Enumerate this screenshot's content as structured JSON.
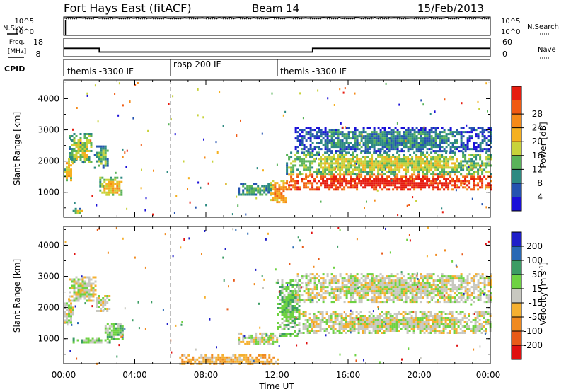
{
  "header": {
    "station": "Fort Hays East (fitACF)",
    "beam": "Beam 14",
    "date": "15/Feb/2013"
  },
  "status_panels": {
    "nsky_label": "N.Sky",
    "nsearch_label": "N.Search",
    "noise_ticks": [
      "10^5",
      "10^0"
    ],
    "freq_label_top": "Freq.",
    "freq_label_bottom": "[MHz]",
    "freq_ticks": [
      "18",
      "8"
    ],
    "nave_label": "Nave",
    "nave_ticks": [
      "60",
      "0"
    ],
    "cpid_label": "CPID",
    "cpid_segments": [
      {
        "label": "themis -3300 IF",
        "start_h": 0,
        "end_h": 6
      },
      {
        "label": "rbsp 200 IF",
        "start_h": 6,
        "end_h": 12
      },
      {
        "label": "themis -3300 IF",
        "start_h": 12,
        "end_h": 24
      }
    ]
  },
  "axes": {
    "ylabel": "Slant Range [km]",
    "xlabel": "Time UT",
    "x_ticks": [
      "00:00",
      "04:00",
      "08:00",
      "12:00",
      "16:00",
      "20:00",
      "00:00"
    ],
    "y_ticks": [
      "1000",
      "2000",
      "3000",
      "4000"
    ]
  },
  "colorbars": {
    "power": {
      "label": "Power [dB]",
      "ticks": [
        "4",
        "8",
        "12",
        "16",
        "20",
        "24",
        "28"
      ],
      "colors": [
        "#1a0fd8",
        "#2453b0",
        "#2d8a82",
        "#5ab35a",
        "#c8d23a",
        "#f5b020",
        "#f58a18",
        "#f05a12",
        "#e61c10"
      ]
    },
    "velocity": {
      "label_main": "Velocity [m s",
      "label_sup": "-1",
      "label_end": "]",
      "ticks": [
        "200",
        "100",
        "50",
        "15",
        "-15",
        "-50",
        "-100",
        "-200"
      ],
      "colors": [
        "#1e1ec8",
        "#2868b4",
        "#3c9c64",
        "#6ed242",
        "#c8c8c0",
        "#f5b030",
        "#f08a20",
        "#e85a18",
        "#e01010"
      ]
    }
  },
  "chart_data": [
    {
      "type": "line",
      "panel": "N.Sky / N.Search noise",
      "x_hours": [
        0,
        2,
        4,
        6,
        8,
        10,
        12,
        14,
        16,
        18,
        20,
        22,
        24
      ],
      "series": [
        {
          "values": [
            40000,
            60000,
            50000,
            60000,
            40000,
            50000,
            60000,
            50000,
            60000,
            50000,
            60000,
            50000,
            60000
          ]
        }
      ],
      "ylim": [
        1,
        100000
      ],
      "log_scale": true
    },
    {
      "type": "line",
      "panel": "Freq. / Nave",
      "x_hours": [
        0,
        2,
        2,
        14,
        14,
        24
      ],
      "series": [
        {
          "values": [
            12.5,
            12.5,
            10.5,
            10.5,
            12.5,
            12.5
          ]
        },
        {
          "values": [
            22,
            22,
            22,
            22,
            22,
            22
          ]
        }
      ],
      "ylim_freq": [
        8,
        18
      ],
      "ylim_nave": [
        0,
        60
      ]
    },
    {
      "type": "heatmap",
      "panel": "Power",
      "xlim_hours": [
        0,
        24
      ],
      "ylim_km": [
        200,
        4600
      ],
      "regions": [
        {
          "x": [
            0.0,
            0.5
          ],
          "y": [
            1400,
            2100
          ],
          "level": 5
        },
        {
          "x": [
            0.3,
            1.5
          ],
          "y": [
            2000,
            2900
          ],
          "level": 4
        },
        {
          "x": [
            1.7,
            2.5
          ],
          "y": [
            1800,
            2500
          ],
          "level": 3
        },
        {
          "x": [
            2.0,
            3.3
          ],
          "y": [
            900,
            1500
          ],
          "level": 5
        },
        {
          "x": [
            0.5,
            1.2
          ],
          "y": [
            350,
            500
          ],
          "level": 4
        },
        {
          "x": [
            9.8,
            11.6
          ],
          "y": [
            900,
            1300
          ],
          "level": 3
        },
        {
          "x": [
            11.6,
            12.5
          ],
          "y": [
            700,
            1400
          ],
          "level": 6
        },
        {
          "x": [
            12.5,
            24.0
          ],
          "y": [
            1100,
            1600
          ],
          "level": 8
        },
        {
          "x": [
            12.5,
            24.0
          ],
          "y": [
            1600,
            2300
          ],
          "level": 4
        },
        {
          "x": [
            13.0,
            24.0
          ],
          "y": [
            2300,
            3100
          ],
          "level": 2
        }
      ]
    },
    {
      "type": "heatmap",
      "panel": "Velocity",
      "xlim_hours": [
        0,
        24
      ],
      "ylim_km": [
        200,
        4600
      ],
      "regions": [
        {
          "x": [
            0.0,
            0.5
          ],
          "y": [
            1500,
            2300
          ],
          "level": 4
        },
        {
          "x": [
            0.3,
            1.8
          ],
          "y": [
            2200,
            3000
          ],
          "level": 4
        },
        {
          "x": [
            1.8,
            2.6
          ],
          "y": [
            1900,
            2400
          ],
          "level": 4
        },
        {
          "x": [
            2.3,
            3.3
          ],
          "y": [
            1000,
            1500
          ],
          "level": 3
        },
        {
          "x": [
            0.5,
            2.6
          ],
          "y": [
            850,
            1050
          ],
          "level": 3
        },
        {
          "x": [
            6.5,
            12.0
          ],
          "y": [
            200,
            500
          ],
          "level": 5
        },
        {
          "x": [
            9.8,
            12.0
          ],
          "y": [
            800,
            1200
          ],
          "level": 4
        },
        {
          "x": [
            12.0,
            13.2
          ],
          "y": [
            1100,
            2900
          ],
          "level": 3
        },
        {
          "x": [
            13.2,
            24.0
          ],
          "y": [
            1200,
            1900
          ],
          "level": 4
        },
        {
          "x": [
            13.0,
            24.0
          ],
          "y": [
            2200,
            3100
          ],
          "level": 4
        }
      ]
    }
  ]
}
